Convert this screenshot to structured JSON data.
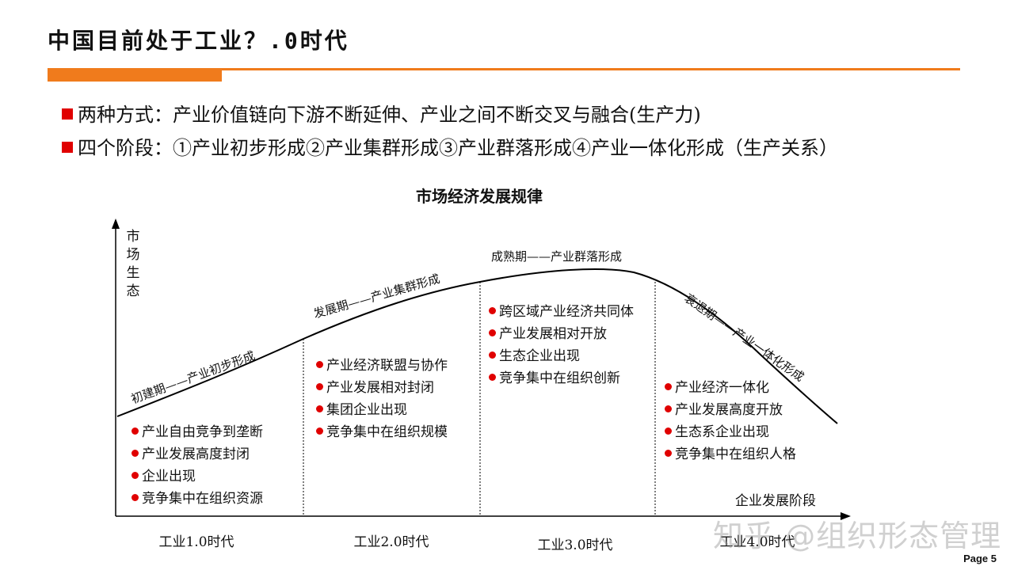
{
  "header": {
    "title": "中国目前处于工业？.0时代"
  },
  "bullets": [
    "两种方式：产业价值链向下游不断延伸、产业之间不断交叉与融合(生产力)",
    "四个阶段：①产业初步形成②产业集群形成③产业群落形成④产业一体化形成（生产关系）"
  ],
  "diagram": {
    "title": "市场经济发展规律",
    "y_label": [
      "市",
      "场",
      "生",
      "态"
    ],
    "x_label": "企业发展阶段",
    "phases": [
      "初建期——产业初步形成",
      "发展期——产业集群形成",
      "成熟期——产业群落形成",
      "衰退期——产业一体化形成"
    ],
    "stages": [
      [
        "产业自由竞争到垄断",
        "产业发展高度封闭",
        "企业出现",
        "竞争集中在组织资源"
      ],
      [
        "产业经济联盟与协作",
        "产业发展相对封闭",
        "集团企业出现",
        "竞争集中在组织规模"
      ],
      [
        "跨区域产业经济共同体",
        "产业发展相对开放",
        "生态企业出现",
        "竞争集中在组织创新"
      ],
      [
        "产业经济一体化",
        "产业发展高度开放",
        "生态系企业出现",
        "竞争集中在组织人格"
      ]
    ],
    "eras": [
      "工业1.0时代",
      "工业2.0时代",
      "工业3.0时代",
      "工业4.0时代"
    ]
  },
  "watermark": "知乎 @组织形态管理",
  "page_number": "Page 5",
  "colors": {
    "accent": "#f07b1c",
    "bullet": "#e00000"
  }
}
